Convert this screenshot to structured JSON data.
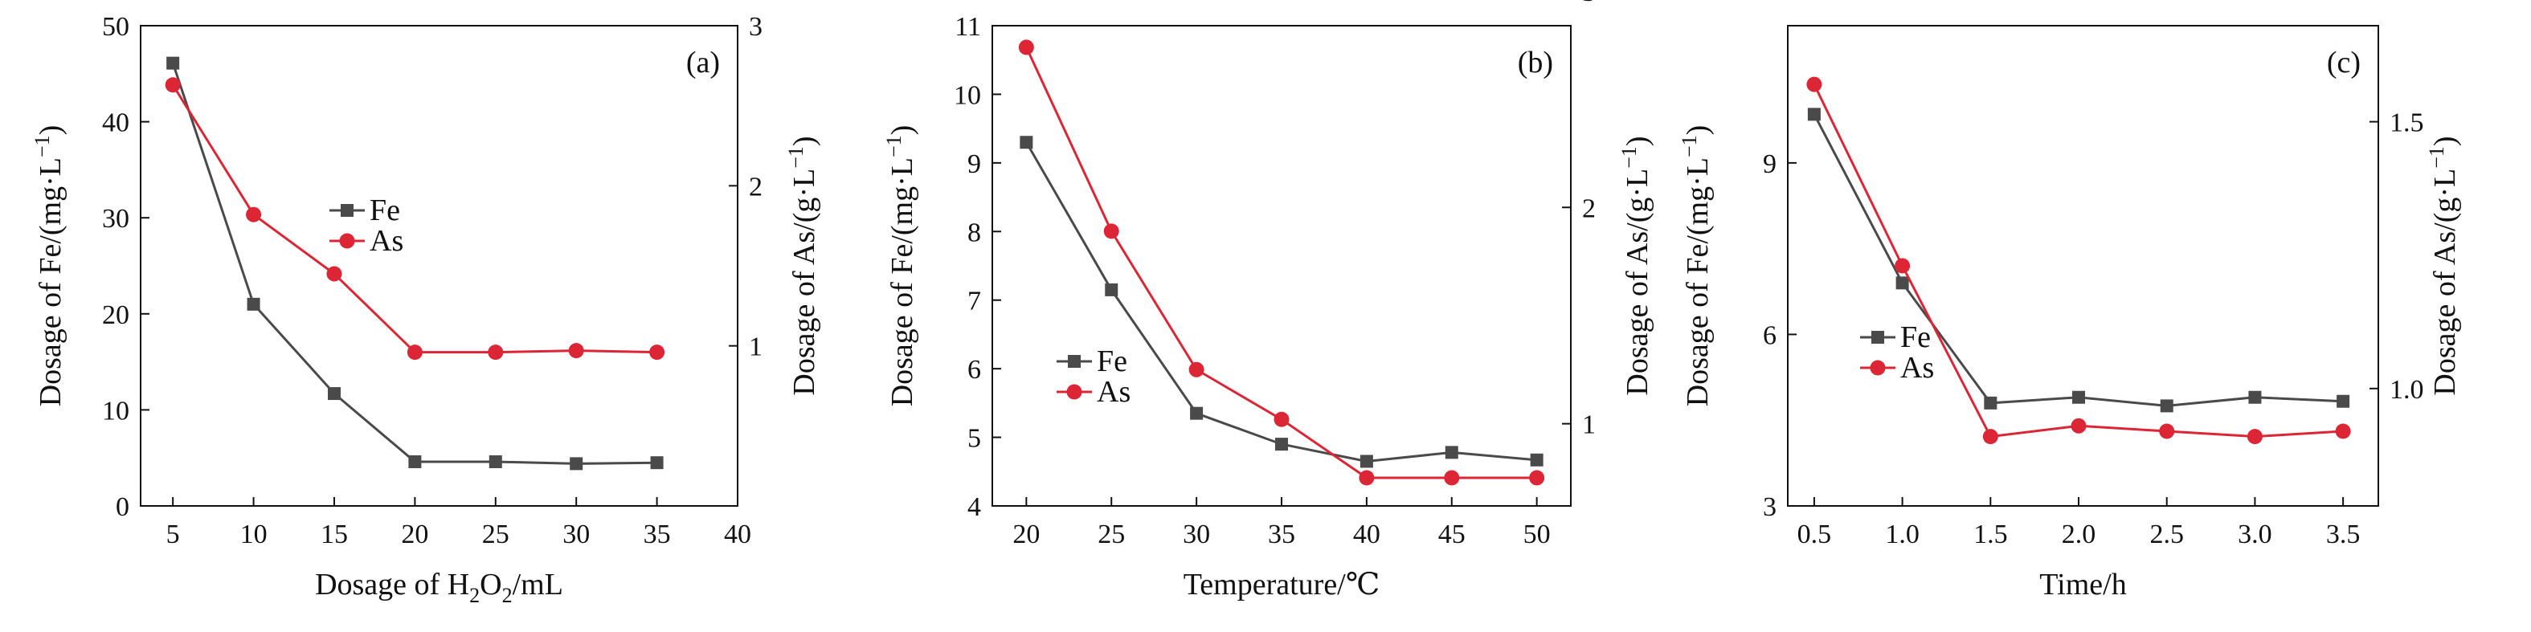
{
  "colors": {
    "fe": "#4a4a4a",
    "as": "#dc2636",
    "axis": "#111111"
  },
  "legend": {
    "fe_label": "Fe",
    "as_label": "As"
  },
  "chart_data": [
    {
      "type": "line",
      "panel_label": "(a)",
      "xlabel_prefix": "Dosage of H",
      "xlabel_sub1": "2",
      "xlabel_mid": "O",
      "xlabel_sub2": "2",
      "xlabel_suffix": "/mL",
      "ylabel_left": "Dosage of Fe/(mg·L",
      "ylabel_right": "Dosage of As/(g·L",
      "ylabel_sup": "−1",
      "xlim": [
        3,
        40
      ],
      "ylim_left": [
        0,
        50
      ],
      "ylim_right": [
        0,
        3
      ],
      "xticks": [
        5,
        10,
        15,
        20,
        25,
        30,
        35,
        40
      ],
      "yticks_left": [
        0,
        10,
        20,
        30,
        40,
        50
      ],
      "yticks_right": [
        1,
        2,
        3
      ],
      "grid": false,
      "legend_position": "center-left",
      "x": [
        5,
        10,
        15,
        20,
        25,
        30,
        35
      ],
      "series": [
        {
          "name": "Fe",
          "axis": "left",
          "marker": "square",
          "values": [
            46.1,
            21.0,
            11.7,
            4.6,
            4.6,
            4.4,
            4.5
          ]
        },
        {
          "name": "As",
          "axis": "right",
          "marker": "circle",
          "values": [
            2.63,
            1.82,
            1.45,
            0.96,
            0.96,
            0.97,
            0.96
          ]
        }
      ]
    },
    {
      "type": "line",
      "panel_label": "(b)",
      "xlabel": "Temperature/℃",
      "ylabel_left": "Dosage of Fe/(mg·L",
      "ylabel_right": "Dosage of As/(g·L",
      "ylabel_sup": "−1",
      "xlim": [
        18,
        52
      ],
      "ylim_left": [
        4,
        11
      ],
      "ylim_right": [
        0.62,
        2.84
      ],
      "xticks": [
        20,
        25,
        30,
        35,
        40,
        45,
        50
      ],
      "yticks_left": [
        4,
        5,
        6,
        7,
        8,
        9,
        10,
        11
      ],
      "yticks_right": [
        1,
        2,
        3
      ],
      "grid": false,
      "legend_position": "center-left",
      "x": [
        20,
        25,
        30,
        35,
        40,
        45,
        50
      ],
      "series": [
        {
          "name": "Fe",
          "axis": "left",
          "marker": "square",
          "values": [
            9.3,
            7.15,
            5.35,
            4.9,
            4.65,
            4.78,
            4.67
          ]
        },
        {
          "name": "As",
          "axis": "right",
          "marker": "circle",
          "values": [
            2.74,
            1.89,
            1.25,
            1.02,
            0.75,
            0.75,
            0.75
          ]
        }
      ]
    },
    {
      "type": "line",
      "panel_label": "(c)",
      "xlabel": "Time/h",
      "ylabel_left": "Dosage of Fe/(mg·L",
      "ylabel_right": "Dosage of As/(g·L",
      "ylabel_sup": "−1",
      "xlim": [
        0.35,
        3.7
      ],
      "ylim_left": [
        3,
        11.4
      ],
      "ylim_right": [
        0.78,
        1.68
      ],
      "xticks": [
        0.5,
        1.0,
        1.5,
        2.0,
        2.5,
        3.0,
        3.5
      ],
      "xticklabels": [
        "0.5",
        "1.0",
        "1.5",
        "2.0",
        "2.5",
        "3.0",
        "3.5"
      ],
      "yticks_left": [
        3,
        6,
        9
      ],
      "yticks_right": [
        1.0,
        1.5
      ],
      "yticklabels_right": [
        "1.0",
        "1.5"
      ],
      "grid": false,
      "legend_position": "center-left",
      "x": [
        0.5,
        1.0,
        1.5,
        2.0,
        2.5,
        3.0,
        3.5
      ],
      "series": [
        {
          "name": "Fe",
          "axis": "left",
          "marker": "square",
          "values": [
            9.85,
            6.9,
            4.8,
            4.9,
            4.75,
            4.9,
            4.83
          ]
        },
        {
          "name": "As",
          "axis": "right",
          "marker": "circle",
          "values": [
            1.57,
            1.23,
            0.91,
            0.93,
            0.92,
            0.91,
            0.92
          ]
        }
      ]
    }
  ]
}
